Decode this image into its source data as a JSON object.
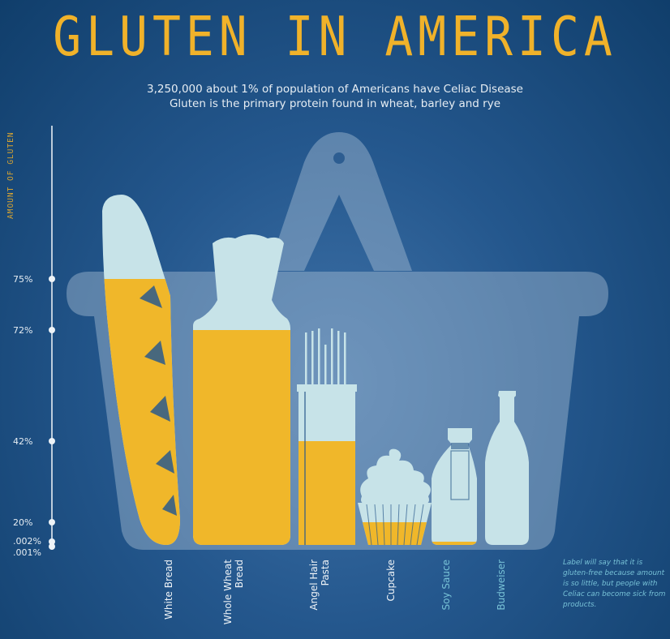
{
  "title": "GLUTEN IN AMERICA",
  "subtitle_line1": "3,250,000 about 1% of population of Americans have Celiac Disease",
  "subtitle_line2": "Gluten is the primary protein found in wheat, barley and rye",
  "note": "Label will say that it is gluten-free because amount is so little, but people with Celiac can become sick from products.",
  "colors": {
    "gluten_fill": "#f0b72a",
    "product": "#c7e3e8",
    "basket": "#a8bfd4",
    "label_white": "#eef3f7",
    "label_teal": "#77c1d6"
  },
  "chart_data": {
    "type": "bar",
    "title": "GLUTEN IN AMERICA",
    "ylabel": "AMOUNT OF GLUTEN",
    "y_ticks": [
      "75%",
      "72%",
      "42%",
      "20%",
      ".002%",
      ".001%"
    ],
    "categories": [
      "White Bread",
      "Whole Wheat Bread",
      "Angel Hair Pasta",
      "Cupcake",
      "Soy Sauce",
      "Budweiser"
    ],
    "values": [
      75,
      72,
      42,
      20,
      0.002,
      0.001
    ],
    "unit": "%"
  }
}
